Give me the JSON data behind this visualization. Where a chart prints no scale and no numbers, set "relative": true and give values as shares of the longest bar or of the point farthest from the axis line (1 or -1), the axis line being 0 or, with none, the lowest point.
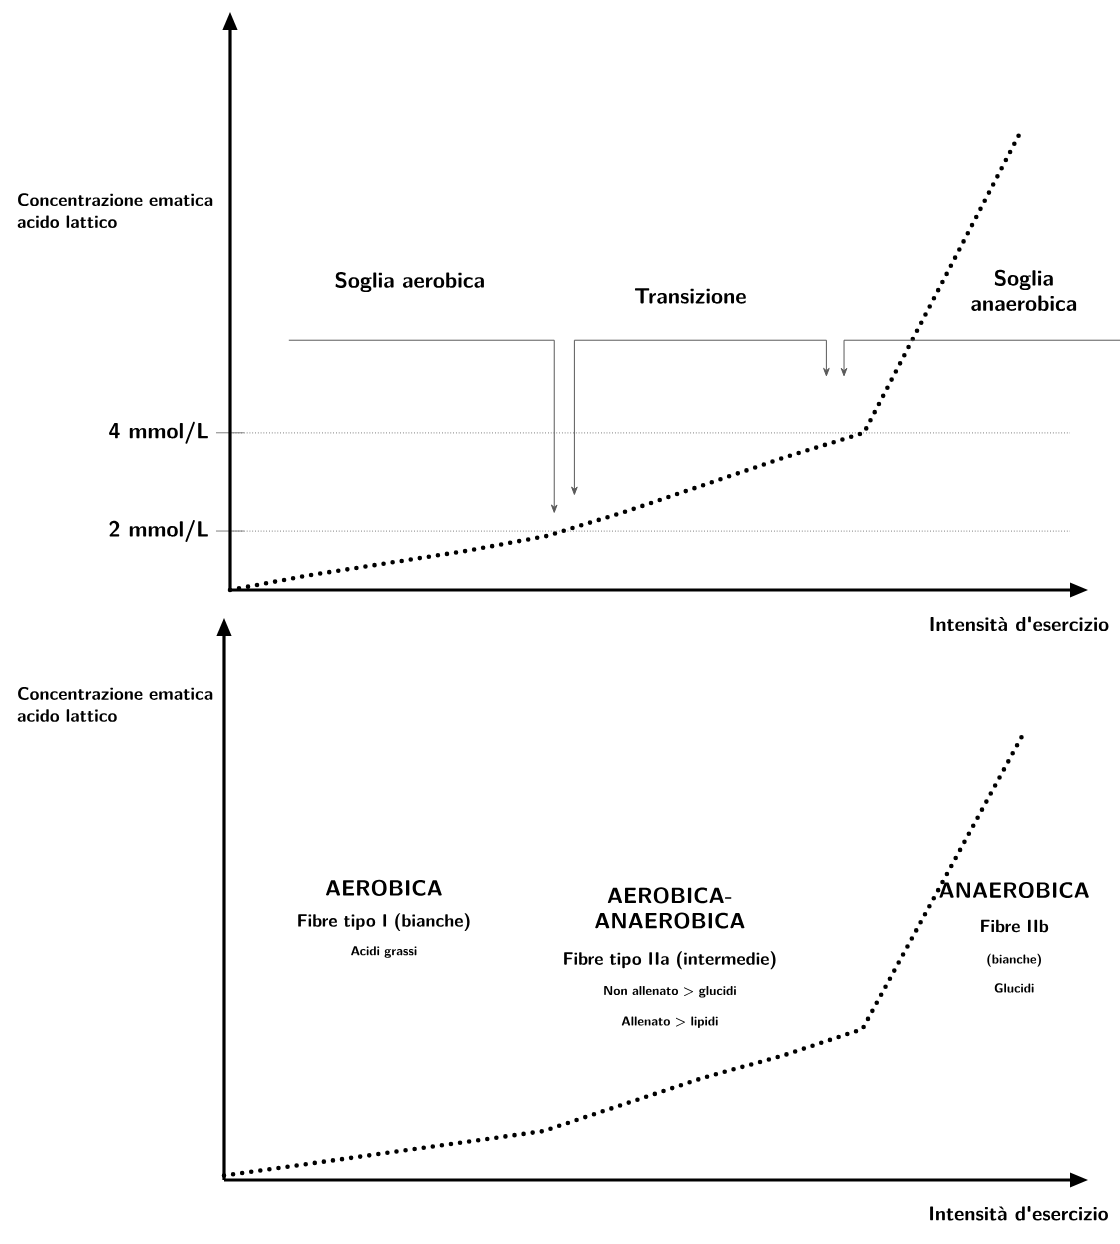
{
  "chart_data": [
    {
      "type": "line",
      "ylabel": "Concentrazione ematica acido lattico",
      "xlabel": "Intensità d'esercizio",
      "categories": [
        null,
        null,
        null,
        null,
        null,
        null,
        null,
        null,
        null,
        null,
        null
      ],
      "series": [
        {
          "color": "#000000",
          "values": [
            0.8,
            1.1,
            1.35,
            1.6,
            1.9,
            2.4,
            2.95,
            3.5,
            4.0,
            7.1,
            10.2
          ]
        }
      ],
      "line_style": "dotted",
      "ylim": [
        0.8,
        12.2
      ],
      "yticks": [
        {
          "value": 2,
          "label": "2 mmol/L"
        },
        {
          "value": 4,
          "label": "4 mmol/L"
        }
      ],
      "grid": "y",
      "tick_labels": "y",
      "annotations": [
        "Soglia aerobica",
        "Transizione",
        "Soglia anaerobica"
      ]
    },
    {
      "type": "line",
      "ylabel": "Concentrazione ematica acido lattico",
      "xlabel": "Intensità d'esercizio",
      "categories": [
        null,
        null,
        null,
        null,
        null,
        null,
        null,
        null,
        null,
        null,
        null
      ],
      "series": [
        {
          "color": "#000000",
          "values": [
            0.01,
            0.035,
            0.06,
            0.085,
            0.11,
            0.17,
            0.23,
            0.28,
            0.34,
            0.67,
            1
          ]
        }
      ],
      "line_style": "dotted",
      "relative": true,
      "tick_labels": false,
      "annotations": [
        "AEROBICA",
        "Fibre tipo I (bianche)",
        "Acidi grassi",
        "AEROBICA-ANAEROBICA",
        "Fibre tipo IIa (intermedie)",
        "Non allenato > glucidi",
        "Allenato > lipidi",
        "ANAEROBICA",
        "Fibre IIb",
        "(bianche)",
        "Glucidi"
      ]
    }
  ]
}
